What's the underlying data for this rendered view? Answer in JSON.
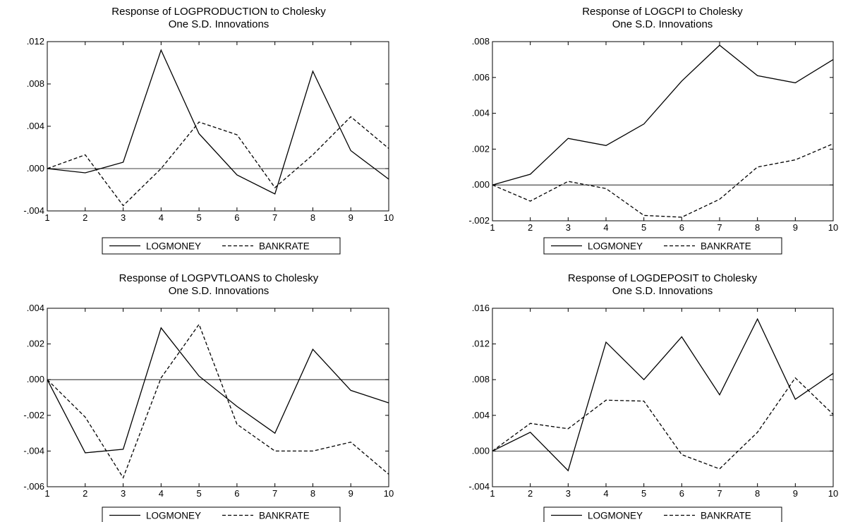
{
  "chart_data": [
    {
      "type": "line",
      "title": "Response of LOGPRODUCTION to Cholesky",
      "subtitle": "One S.D. Innovations",
      "x": [
        1,
        2,
        3,
        4,
        5,
        6,
        7,
        8,
        9,
        10
      ],
      "xticks": [
        "1",
        "2",
        "3",
        "4",
        "5",
        "6",
        "7",
        "8",
        "9",
        "10"
      ],
      "ylim": [
        -0.004,
        0.012
      ],
      "yticks": [
        -0.004,
        0.0,
        0.004,
        0.008,
        0.012
      ],
      "yticklabels": [
        "-.004",
        ".000",
        ".004",
        ".008",
        ".012"
      ],
      "zero_line": true,
      "series": [
        {
          "name": "LOGMONEY",
          "style": "solid",
          "values": [
            0.0,
            -0.0004,
            0.0006,
            0.0112,
            0.0033,
            -0.0006,
            -0.0024,
            0.0092,
            0.0017,
            -0.001
          ]
        },
        {
          "name": "BANKRATE",
          "style": "dashed",
          "values": [
            0.0,
            0.0013,
            -0.0035,
            0.0,
            0.0044,
            0.0032,
            -0.0018,
            0.0013,
            0.0049,
            0.0019
          ]
        }
      ]
    },
    {
      "type": "line",
      "title": "Response of LOGCPI to Cholesky",
      "subtitle": "One S.D. Innovations",
      "x": [
        1,
        2,
        3,
        4,
        5,
        6,
        7,
        8,
        9,
        10
      ],
      "xticks": [
        "1",
        "2",
        "3",
        "4",
        "5",
        "6",
        "7",
        "8",
        "9",
        "10"
      ],
      "ylim": [
        -0.002,
        0.008
      ],
      "yticks": [
        -0.002,
        0.0,
        0.002,
        0.004,
        0.006,
        0.008
      ],
      "yticklabels": [
        "-.002",
        ".000",
        ".002",
        ".004",
        ".006",
        ".008"
      ],
      "zero_line": true,
      "series": [
        {
          "name": "LOGMONEY",
          "style": "solid",
          "values": [
            0.0,
            0.0006,
            0.0026,
            0.0022,
            0.0034,
            0.0058,
            0.0078,
            0.0061,
            0.0057,
            0.007
          ]
        },
        {
          "name": "BANKRATE",
          "style": "dashed",
          "values": [
            0.0,
            -0.0009,
            0.0002,
            -0.0002,
            -0.0017,
            -0.0018,
            -0.0008,
            0.001,
            0.0014,
            0.0023
          ]
        }
      ]
    },
    {
      "type": "line",
      "title": "Response of LOGPVTLOANS to Cholesky",
      "subtitle": "One S.D. Innovations",
      "x": [
        1,
        2,
        3,
        4,
        5,
        6,
        7,
        8,
        9,
        10
      ],
      "xticks": [
        "1",
        "2",
        "3",
        "4",
        "5",
        "6",
        "7",
        "8",
        "9",
        "10"
      ],
      "ylim": [
        -0.006,
        0.004
      ],
      "yticks": [
        -0.006,
        -0.004,
        -0.002,
        0.0,
        0.002,
        0.004
      ],
      "yticklabels": [
        "-.006",
        "-.004",
        "-.002",
        ".000",
        ".002",
        ".004"
      ],
      "zero_line": true,
      "series": [
        {
          "name": "LOGMONEY",
          "style": "solid",
          "values": [
            0.0,
            -0.0041,
            -0.0039,
            0.0029,
            0.0002,
            -0.0015,
            -0.003,
            0.0017,
            -0.0006,
            -0.0013
          ]
        },
        {
          "name": "BANKRATE",
          "style": "dashed",
          "values": [
            0.0,
            -0.0021,
            -0.0055,
            0.0001,
            0.0031,
            -0.0025,
            -0.004,
            -0.004,
            -0.0035,
            -0.0053
          ]
        }
      ]
    },
    {
      "type": "line",
      "title": "Response of LOGDEPOSIT to Cholesky",
      "subtitle": "One S.D. Innovations",
      "x": [
        1,
        2,
        3,
        4,
        5,
        6,
        7,
        8,
        9,
        10
      ],
      "xticks": [
        "1",
        "2",
        "3",
        "4",
        "5",
        "6",
        "7",
        "8",
        "9",
        "10"
      ],
      "ylim": [
        -0.004,
        0.016
      ],
      "yticks": [
        -0.004,
        0.0,
        0.004,
        0.008,
        0.012,
        0.016
      ],
      "yticklabels": [
        "-.004",
        ".000",
        ".004",
        ".008",
        ".012",
        ".016"
      ],
      "zero_line": true,
      "series": [
        {
          "name": "LOGMONEY",
          "style": "solid",
          "values": [
            0.0,
            0.0021,
            -0.0022,
            0.0122,
            0.008,
            0.0128,
            0.0063,
            0.0148,
            0.0058,
            0.0087
          ]
        },
        {
          "name": "BANKRATE",
          "style": "dashed",
          "values": [
            0.0,
            0.0031,
            0.0025,
            0.0057,
            0.0056,
            -0.0004,
            -0.002,
            0.0021,
            0.0082,
            0.0041
          ]
        }
      ]
    }
  ]
}
